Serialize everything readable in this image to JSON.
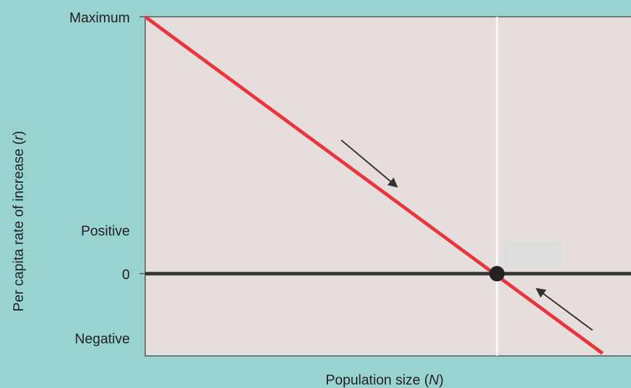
{
  "colors": {
    "background": "#99d3cf",
    "plot_background": "#e5dedd",
    "plot_border": "#555555",
    "curve": "#e8363c",
    "zero_line": "#333333",
    "equilibrium_line": "#ffffff",
    "equilibrium_point": "#222222",
    "arrows": "#333333",
    "label_box": "#dddddd"
  },
  "chart_data": {
    "type": "line",
    "title": "",
    "xlabel": {
      "prefix": "Population size (",
      "variable": "N",
      "suffix": ")"
    },
    "ylabel": {
      "prefix": "Per capita rate of increase (",
      "variable": "r",
      "suffix": ")"
    },
    "y_tick_labels": {
      "maximum": "Maximum",
      "positive": "Positive",
      "zero": "0",
      "negative": "Negative"
    },
    "y_levels": {
      "maximum": 1.0,
      "positive": 0.17,
      "zero": 0.0,
      "negative": -0.25
    },
    "xlim": [
      0,
      1
    ],
    "ylim": [
      -0.32,
      1.0
    ],
    "series": [
      {
        "x": [
          0,
          0.91
        ],
        "y": [
          1.0,
          -0.31
        ]
      }
    ],
    "equilibrium": {
      "x": 0.7,
      "y": 0.0
    },
    "arrows": [
      {
        "direction": "toward-equilibrium-from-left",
        "from": [
          0.39,
          0.52
        ],
        "to": [
          0.5,
          0.34
        ]
      },
      {
        "direction": "toward-equilibrium-from-right",
        "from": [
          0.89,
          -0.22
        ],
        "to": [
          0.78,
          -0.06
        ]
      }
    ],
    "label_box_present": true,
    "grid": false,
    "legend": "none"
  }
}
